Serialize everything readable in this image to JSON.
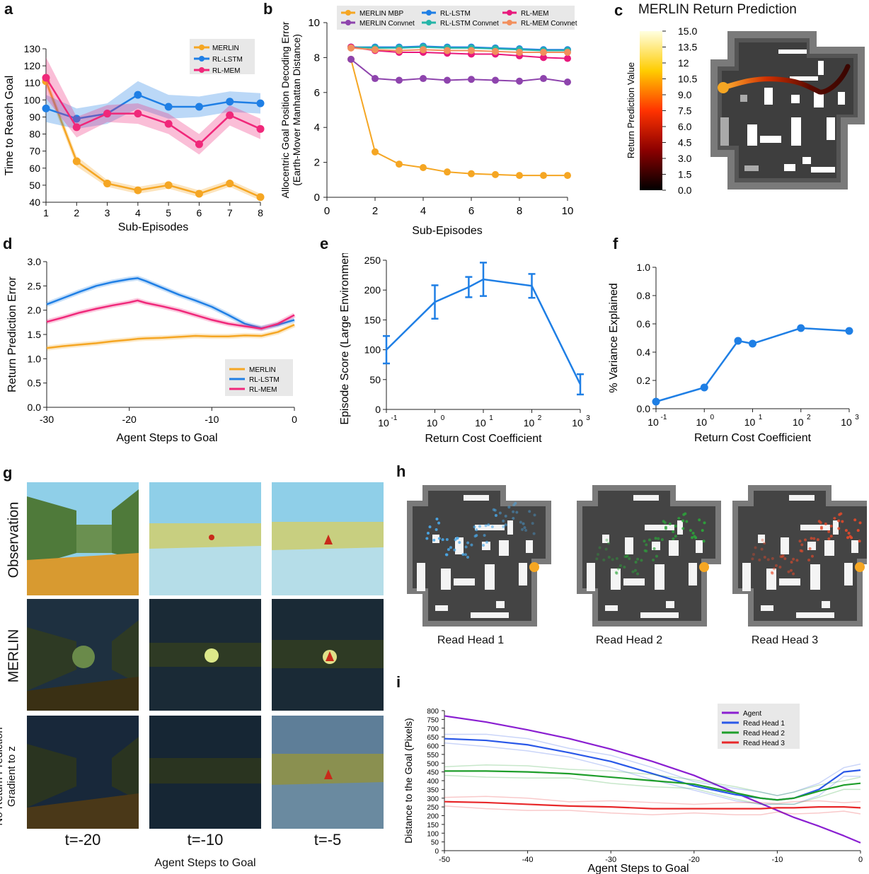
{
  "chart_data": [
    {
      "id": "a",
      "type": "line",
      "panel_label": "a",
      "xlabel": "Sub-Episodes",
      "ylabel": "Time to Reach Goal",
      "x": [
        1,
        2,
        3,
        4,
        5,
        6,
        7,
        8
      ],
      "xlim": [
        1,
        8
      ],
      "ylim": [
        40,
        130
      ],
      "xticks": [
        "1",
        "2",
        "3",
        "4",
        "5",
        "6",
        "7",
        "8"
      ],
      "yticks": [
        "40",
        "50",
        "60",
        "70",
        "80",
        "90",
        "100",
        "110",
        "120",
        "130"
      ],
      "legend_position": "top-right",
      "series": [
        {
          "name": "MERLIN",
          "color": "#f5a623",
          "values": [
            111,
            64,
            51,
            47,
            50,
            45,
            51,
            43
          ],
          "band": [
            3,
            3,
            2,
            2,
            2,
            2,
            2,
            2
          ]
        },
        {
          "name": "RL-LSTM",
          "color": "#1f7fe5",
          "values": [
            95,
            89,
            92,
            103,
            96,
            96,
            99,
            98
          ],
          "band": [
            8,
            6,
            6,
            8,
            7,
            6,
            6,
            6
          ]
        },
        {
          "name": "RL-MEM",
          "color": "#f0287a",
          "values": [
            113,
            84,
            92,
            92,
            86,
            74,
            91,
            83
          ],
          "band": [
            12,
            6,
            5,
            6,
            6,
            6,
            6,
            6
          ]
        }
      ]
    },
    {
      "id": "b",
      "type": "line",
      "panel_label": "b",
      "xlabel": "Sub-Episodes",
      "ylabel": "Allocentric Goal Position Decoding Error",
      "ylabel2": "(Earth-Mover Manhattan Distance)",
      "x": [
        1,
        2,
        3,
        4,
        5,
        6,
        7,
        8,
        9,
        10
      ],
      "xlim": [
        0,
        10
      ],
      "ylim": [
        0,
        10
      ],
      "xticks": [
        "0",
        "2",
        "4",
        "6",
        "8",
        "10"
      ],
      "yticks": [
        "0",
        "2",
        "4",
        "6",
        "8",
        "10"
      ],
      "legend_position": "top",
      "series": [
        {
          "name": "MERLIN MBP",
          "color": "#f5a623",
          "values": [
            7.9,
            2.6,
            1.9,
            1.7,
            1.45,
            1.35,
            1.3,
            1.25,
            1.25,
            1.25
          ]
        },
        {
          "name": "MERLIN Convnet",
          "color": "#8e44ad",
          "values": [
            7.9,
            6.8,
            6.7,
            6.8,
            6.7,
            6.75,
            6.7,
            6.65,
            6.8,
            6.6
          ]
        },
        {
          "name": "RL-LSTM",
          "color": "#1f7fe5",
          "values": [
            8.6,
            8.6,
            8.6,
            8.65,
            8.6,
            8.6,
            8.55,
            8.5,
            8.45,
            8.45
          ]
        },
        {
          "name": "RL-LSTM Convnet",
          "color": "#26b5a8",
          "values": [
            8.6,
            8.55,
            8.55,
            8.6,
            8.55,
            8.55,
            8.5,
            8.45,
            8.4,
            8.4
          ]
        },
        {
          "name": "RL-MEM",
          "color": "#e8197c",
          "values": [
            8.6,
            8.4,
            8.3,
            8.3,
            8.25,
            8.2,
            8.2,
            8.1,
            8.0,
            7.95
          ]
        },
        {
          "name": "RL-MEM Convnet",
          "color": "#f28f5c",
          "values": [
            8.55,
            8.45,
            8.4,
            8.45,
            8.4,
            8.4,
            8.35,
            8.3,
            8.3,
            8.3
          ]
        }
      ]
    },
    {
      "id": "d",
      "type": "line",
      "panel_label": "d",
      "xlabel": "Agent Steps to Goal",
      "ylabel": "Return Prediction Error",
      "xlim": [
        -30,
        0
      ],
      "ylim": [
        0,
        3
      ],
      "xticks": [
        "-30",
        "-20",
        "-10",
        "0"
      ],
      "yticks": [
        "0.0",
        "0.5",
        "1.0",
        "1.5",
        "2.0",
        "2.5",
        "3.0"
      ],
      "legend_position": "bottom-right",
      "x": [
        -30,
        -28,
        -26,
        -24,
        -22,
        -20,
        -19,
        -18,
        -16,
        -14,
        -12,
        -10,
        -8,
        -6,
        -4,
        -2,
        0
      ],
      "series": [
        {
          "name": "MERLIN",
          "color": "#f5a623",
          "values": [
            1.22,
            1.26,
            1.29,
            1.32,
            1.36,
            1.39,
            1.41,
            1.42,
            1.43,
            1.45,
            1.47,
            1.46,
            1.46,
            1.48,
            1.47,
            1.55,
            1.7
          ]
        },
        {
          "name": "RL-LSTM",
          "color": "#1f7fe5",
          "values": [
            2.12,
            2.25,
            2.38,
            2.5,
            2.58,
            2.64,
            2.66,
            2.6,
            2.46,
            2.32,
            2.2,
            2.07,
            1.9,
            1.72,
            1.63,
            1.7,
            1.8
          ]
        },
        {
          "name": "RL-MEM",
          "color": "#f0287a",
          "values": [
            1.76,
            1.85,
            1.95,
            2.03,
            2.1,
            2.16,
            2.2,
            2.15,
            2.08,
            2.0,
            1.9,
            1.8,
            1.72,
            1.67,
            1.62,
            1.72,
            1.9
          ]
        }
      ]
    },
    {
      "id": "e",
      "type": "line",
      "panel_label": "e",
      "xlabel": "Return Cost Coefficient",
      "ylabel": "Episode Score (Large Environment)",
      "xscale": "log",
      "xlim": [
        0.1,
        1000
      ],
      "ylim": [
        0,
        250
      ],
      "xticks_base": [
        "10",
        "10",
        "10",
        "10",
        "10"
      ],
      "xticks_exp": [
        "-1",
        "0",
        "1",
        "2",
        "3"
      ],
      "yticks": [
        "0",
        "50",
        "100",
        "150",
        "200",
        "250"
      ],
      "color": "#1f7fe5",
      "x": [
        0.1,
        1,
        5,
        10,
        100,
        1000
      ],
      "values": [
        100,
        180,
        205,
        218,
        207,
        42
      ],
      "errors": [
        23,
        28,
        17,
        28,
        20,
        17
      ]
    },
    {
      "id": "f",
      "type": "line",
      "panel_label": "f",
      "xlabel": "Return Cost Coefficient",
      "ylabel": "% Variance Explained",
      "xscale": "log",
      "xlim": [
        0.1,
        1000
      ],
      "ylim": [
        0,
        1
      ],
      "xticks_base": [
        "10",
        "10",
        "10",
        "10",
        "10"
      ],
      "xticks_exp": [
        "-1",
        "0",
        "1",
        "2",
        "3"
      ],
      "yticks": [
        "0.0",
        "0.2",
        "0.4",
        "0.6",
        "0.8",
        "1.0"
      ],
      "color": "#1f7fe5",
      "x": [
        0.1,
        1,
        5,
        10,
        100,
        1000
      ],
      "values": [
        0.05,
        0.15,
        0.48,
        0.46,
        0.57,
        0.55
      ]
    },
    {
      "id": "i",
      "type": "line",
      "panel_label": "i",
      "xlabel": "Agent Steps to Goal",
      "ylabel": "Distance to the Goal (Pixels)",
      "xlim": [
        -50,
        0
      ],
      "ylim": [
        0,
        800
      ],
      "xticks": [
        "-50",
        "-40",
        "-30",
        "-20",
        "-10",
        "0"
      ],
      "yticks": [
        "0",
        "50",
        "100",
        "150",
        "200",
        "250",
        "300",
        "350",
        "400",
        "450",
        "500",
        "550",
        "600",
        "650",
        "700",
        "750",
        "800"
      ],
      "legend_position": "top-right",
      "x": [
        -50,
        -45,
        -40,
        -35,
        -30,
        -25,
        -20,
        -15,
        -12,
        -10,
        -8,
        -5,
        -2,
        0
      ],
      "series": [
        {
          "name": "Agent",
          "color": "#8a1fd1",
          "values": [
            770,
            735,
            690,
            640,
            580,
            510,
            430,
            330,
            270,
            230,
            190,
            140,
            85,
            45
          ]
        },
        {
          "name": "Read Head 1",
          "color": "#2a58e8",
          "values": [
            640,
            630,
            605,
            560,
            510,
            440,
            370,
            320,
            300,
            290,
            300,
            350,
            450,
            460
          ]
        },
        {
          "name": "Read Head 2",
          "color": "#1e9e2a",
          "values": [
            455,
            455,
            450,
            440,
            420,
            400,
            380,
            330,
            300,
            290,
            300,
            340,
            375,
            385
          ]
        },
        {
          "name": "Read Head 3",
          "color": "#e8282a",
          "values": [
            280,
            275,
            265,
            255,
            250,
            240,
            240,
            240,
            240,
            245,
            245,
            250,
            250,
            245
          ]
        }
      ]
    }
  ],
  "panel_c": {
    "label": "c",
    "title": "MERLIN Return Prediction",
    "colorbar_label": "Return Prediction Value",
    "ticks": [
      "0.0",
      "1.5",
      "3.0",
      "4.5",
      "6.0",
      "7.5",
      "9.0",
      "10.5",
      "12",
      "13.5",
      "15.0"
    ]
  },
  "panel_g": {
    "label": "g",
    "rows": [
      "Observation",
      "MERLIN",
      "No Return Prediction"
    ],
    "row3_line2": "Gradient to z",
    "times": [
      "t=-20",
      "t=-10",
      "t=-5"
    ],
    "xlabel": "Agent Steps to Goal"
  },
  "panel_h": {
    "label": "h",
    "heads": [
      "Read Head 1",
      "Read Head 2",
      "Read Head 3"
    ],
    "colors": [
      "#4aa8e8",
      "#2ca53a",
      "#e84a2a"
    ]
  }
}
